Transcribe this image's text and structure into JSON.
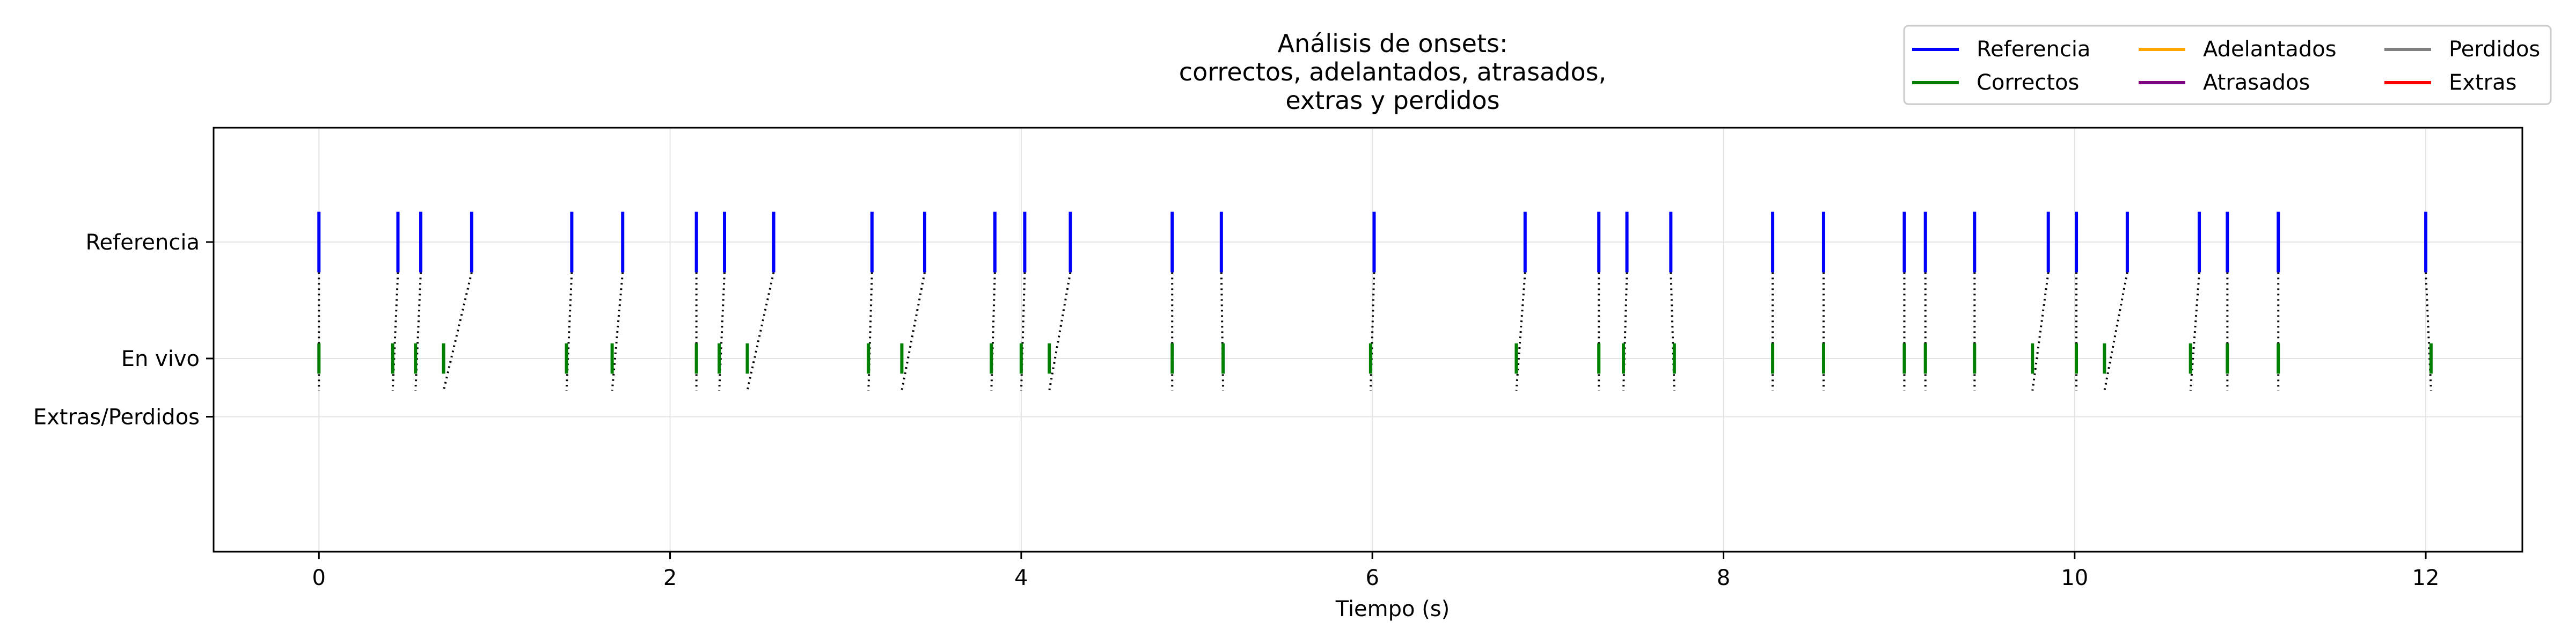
{
  "chart_data": {
    "type": "event-plot",
    "title_lines": [
      "Análisis de onsets:",
      "correctos, adelantados, atrasados,",
      "extras y perdidos"
    ],
    "xlabel": "Tiempo (s)",
    "ylabel": "",
    "xlim": [
      -0.6,
      12.55
    ],
    "xticks": [
      0,
      2,
      4,
      6,
      8,
      10,
      12
    ],
    "yticks": [
      {
        "label": "Referencia",
        "level": 1.0
      },
      {
        "label": "En vivo",
        "level": 0.0
      },
      {
        "label": "Extras/Perdidos",
        "level": -0.5
      }
    ],
    "grid": true,
    "legend": {
      "position": "top-right",
      "columns": 3,
      "entries": [
        {
          "label": "Referencia",
          "color": "#0000ff"
        },
        {
          "label": "Correctos",
          "color": "#008000"
        },
        {
          "label": "Adelantados",
          "color": "#ffa500"
        },
        {
          "label": "Atrasados",
          "color": "#800080"
        },
        {
          "label": "Perdidos",
          "color": "#808080"
        },
        {
          "label": "Extras",
          "color": "#ff0000"
        }
      ]
    },
    "series": [
      {
        "name": "Referencia",
        "color": "#0000ff",
        "values": [
          0.0,
          0.45,
          0.58,
          0.87,
          1.44,
          1.73,
          2.15,
          2.31,
          2.59,
          3.15,
          3.45,
          3.85,
          4.02,
          4.28,
          4.86,
          5.14,
          6.01,
          6.87,
          7.29,
          7.45,
          7.7,
          8.28,
          8.57,
          9.03,
          9.15,
          9.43,
          9.85,
          10.01,
          10.3,
          10.71,
          10.87,
          11.16,
          12.0
        ]
      },
      {
        "name": "Correctos",
        "color": "#008000",
        "values": [
          0.0,
          0.42,
          0.55,
          0.71,
          1.41,
          1.67,
          2.15,
          2.28,
          2.44,
          3.13,
          3.32,
          3.83,
          4.0,
          4.16,
          4.86,
          5.15,
          5.99,
          6.82,
          7.29,
          7.43,
          7.72,
          8.28,
          8.57,
          9.03,
          9.15,
          9.43,
          9.76,
          10.01,
          10.17,
          10.66,
          10.87,
          11.16,
          12.03
        ]
      }
    ],
    "matches": [
      [
        0,
        0
      ],
      [
        1,
        1
      ],
      [
        2,
        2
      ],
      [
        3,
        3
      ],
      [
        4,
        4
      ],
      [
        5,
        5
      ],
      [
        6,
        6
      ],
      [
        7,
        7
      ],
      [
        8,
        8
      ],
      [
        9,
        9
      ],
      [
        10,
        10
      ],
      [
        11,
        11
      ],
      [
        12,
        12
      ],
      [
        13,
        13
      ],
      [
        14,
        14
      ],
      [
        15,
        15
      ],
      [
        16,
        16
      ],
      [
        17,
        17
      ],
      [
        18,
        18
      ],
      [
        19,
        19
      ],
      [
        20,
        20
      ],
      [
        21,
        21
      ],
      [
        22,
        22
      ],
      [
        23,
        23
      ],
      [
        24,
        24
      ],
      [
        25,
        25
      ],
      [
        26,
        26
      ],
      [
        27,
        27
      ],
      [
        28,
        28
      ],
      [
        29,
        29
      ],
      [
        30,
        30
      ],
      [
        31,
        31
      ],
      [
        32,
        32
      ]
    ]
  }
}
